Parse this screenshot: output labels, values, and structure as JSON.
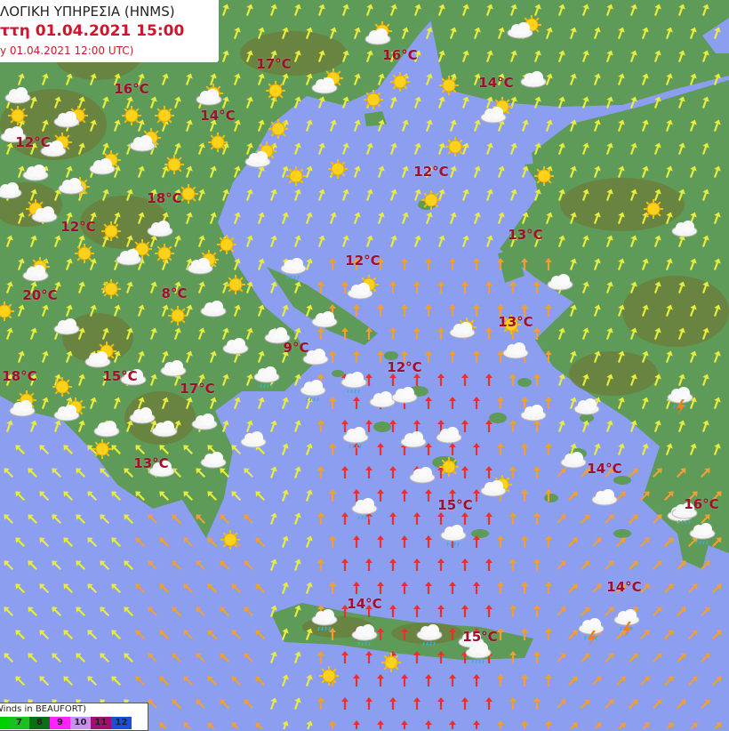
{
  "header": {
    "agency": "ΛΟΓΙΚΗ ΥΠΗΡΕΣΙΑ (HNMS)",
    "forecast_time": "ττη 01.04.2021 15:00",
    "base_time": "y 01.04.2021 12:00 UTC)"
  },
  "temperatures": [
    "17°C",
    "16°C",
    "16°C",
    "14°C",
    "14°C",
    "12°C",
    "12°C",
    "18°C",
    "12°C",
    "13°C",
    "12°C",
    "20°C",
    "8°C",
    "13°C",
    "9°C",
    "12°C",
    "18°C",
    "15°C",
    "17°C",
    "14°C",
    "13°C",
    "15°C",
    "16°C",
    "14°C",
    "14°C",
    "15°C"
  ],
  "legend": {
    "title": "Winds in BEAUFORT)",
    "items": [
      {
        "label": "",
        "color": "#00d000"
      },
      {
        "label": "7",
        "color": "#19c01e"
      },
      {
        "label": "8",
        "color": "#0a6e14"
      },
      {
        "label": "9",
        "color": "#ff22ff"
      },
      {
        "label": "10",
        "color": "#c890f0"
      },
      {
        "label": "11",
        "color": "#a0106e"
      },
      {
        "label": "12",
        "color": "#1a4fd8"
      }
    ]
  },
  "colors": {
    "sea": "#8c9ef0",
    "land": "#5e9a58",
    "mountain": "#6c7a36",
    "wind_light": "#e8ec3c",
    "wind_moderate": "#f0a030",
    "wind_strong": "#e83030",
    "temperature": "#a0102c"
  },
  "icons": [
    "sun-icon",
    "cloud-icon",
    "sun-cloud-icon",
    "rain-cloud-icon",
    "thunderstorm-icon",
    "wind-arrow-icon"
  ]
}
